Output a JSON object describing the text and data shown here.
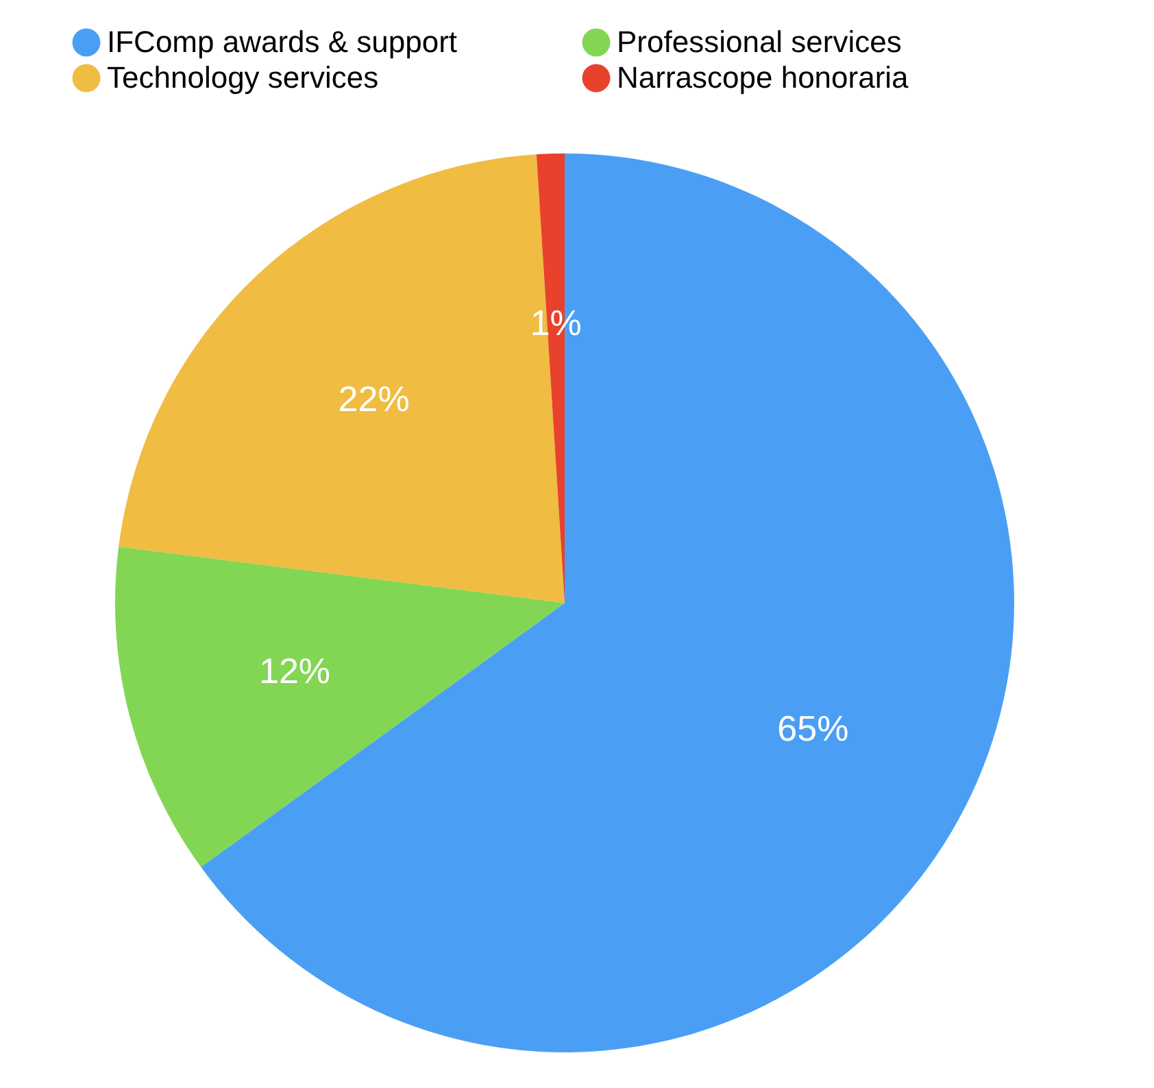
{
  "chart_data": {
    "type": "pie",
    "categories": [
      "IFComp awards & support",
      "Professional services",
      "Technology services",
      "Narrascope honoraria"
    ],
    "values": [
      65,
      12,
      22,
      1
    ],
    "colors": [
      "#4a9ff5",
      "#82d654",
      "#f0bc42",
      "#e8412c"
    ],
    "value_labels": [
      "65%",
      "12%",
      "22%",
      "1%"
    ],
    "legend": "top"
  }
}
